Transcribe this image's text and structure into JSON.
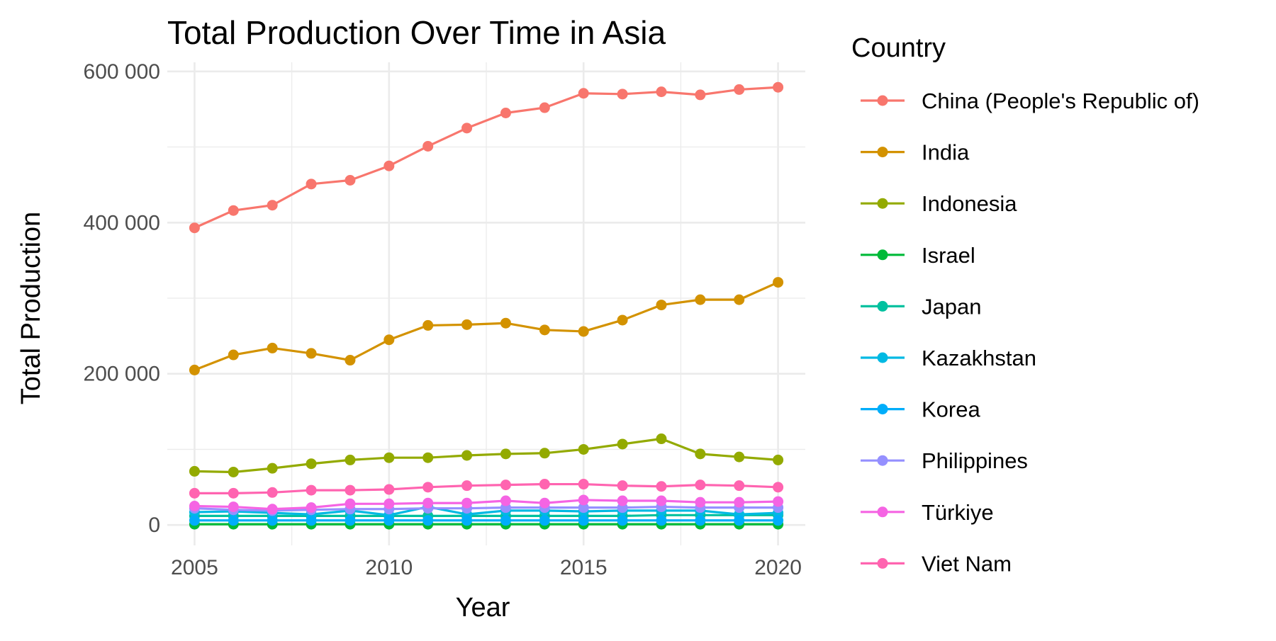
{
  "chart_data": {
    "type": "line",
    "title": "Total Production Over Time in Asia",
    "xlabel": "Year",
    "ylabel": "Total Production",
    "xlim": [
      2004.3,
      2020.7
    ],
    "ylim": [
      -27000,
      612000
    ],
    "x_ticks": [
      2005,
      2010,
      2015,
      2020
    ],
    "x_tick_labels": [
      "2005",
      "2010",
      "2015",
      "2020"
    ],
    "y_ticks": [
      0,
      200000,
      400000,
      600000
    ],
    "y_tick_labels": [
      "0",
      "200 000",
      "400 000",
      "600 000"
    ],
    "grid": true,
    "legend_title": "Country",
    "legend_position": "right",
    "x": [
      2005,
      2006,
      2007,
      2008,
      2009,
      2010,
      2011,
      2012,
      2013,
      2014,
      2015,
      2016,
      2017,
      2018,
      2019,
      2020
    ],
    "series": [
      {
        "name": "China (People's Republic of)",
        "color": "#F8766D",
        "values": [
          393000,
          416000,
          423000,
          451000,
          456000,
          475000,
          501000,
          525000,
          545000,
          552000,
          571000,
          570000,
          573000,
          569000,
          576000,
          579000
        ]
      },
      {
        "name": "India",
        "color": "#D39200",
        "values": [
          205000,
          225000,
          234000,
          227000,
          218000,
          245000,
          264000,
          265000,
          267000,
          258000,
          256000,
          271000,
          291000,
          298000,
          298000,
          321000
        ]
      },
      {
        "name": "Indonesia",
        "color": "#93AA00",
        "values": [
          71000,
          70000,
          75000,
          81000,
          86000,
          89000,
          89000,
          92000,
          94000,
          95000,
          100000,
          107000,
          114000,
          94000,
          90000,
          86000
        ]
      },
      {
        "name": "Israel",
        "color": "#00BA38",
        "values": [
          1000,
          1000,
          1000,
          1000,
          1000,
          1000,
          1000,
          1000,
          1000,
          1000,
          1000,
          1000,
          1000,
          1000,
          1000,
          1000
        ]
      },
      {
        "name": "Japan",
        "color": "#00C19F",
        "values": [
          12000,
          12000,
          12000,
          12000,
          12000,
          12000,
          12000,
          12000,
          12000,
          12000,
          12000,
          12000,
          13000,
          13000,
          13000,
          13000
        ]
      },
      {
        "name": "Kazakhstan",
        "color": "#00B9E3",
        "values": [
          17000,
          18000,
          16000,
          14000,
          19000,
          13000,
          24000,
          14000,
          19000,
          19000,
          18000,
          19000,
          19000,
          19000,
          14000,
          16000
        ]
      },
      {
        "name": "Korea",
        "color": "#00ADFA",
        "values": [
          6000,
          6000,
          6000,
          6000,
          6000,
          6000,
          6000,
          6000,
          6000,
          6000,
          6000,
          6000,
          6000,
          6000,
          6000,
          6000
        ]
      },
      {
        "name": "Philippines",
        "color": "#9590FF",
        "values": [
          22000,
          20000,
          19000,
          20000,
          21000,
          21000,
          22000,
          22000,
          23000,
          23000,
          23000,
          23000,
          24000,
          23000,
          23000,
          23000
        ]
      },
      {
        "name": "Türkiye",
        "color": "#F564E3",
        "values": [
          25000,
          24000,
          21000,
          23000,
          28000,
          28000,
          29000,
          29000,
          32000,
          29000,
          33000,
          32000,
          32000,
          30000,
          30000,
          31000
        ]
      },
      {
        "name": "Viet Nam",
        "color": "#FF64B0",
        "values": [
          42000,
          42000,
          43000,
          46000,
          46000,
          47000,
          50000,
          52000,
          53000,
          54000,
          54000,
          52000,
          51000,
          53000,
          52000,
          50000
        ]
      }
    ]
  }
}
